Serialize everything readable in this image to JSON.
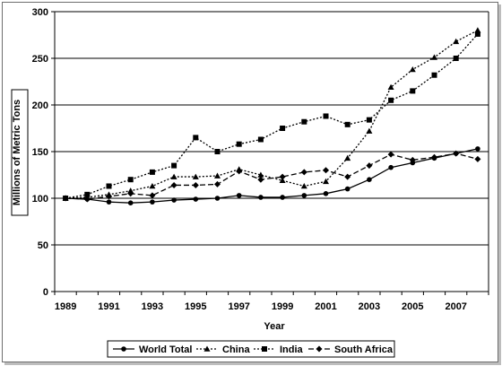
{
  "chart_data": {
    "type": "line",
    "title": "",
    "xlabel": "Year",
    "ylabel": "Millions of Metric Tons",
    "xlim": [
      1989,
      2008
    ],
    "ylim": [
      0,
      300
    ],
    "y_ticks": [
      0,
      50,
      100,
      150,
      200,
      250,
      300
    ],
    "x_ticks": [
      1989,
      1991,
      1993,
      1995,
      1997,
      1999,
      2001,
      2003,
      2005,
      2007
    ],
    "grid": "horizontal",
    "legend": "bottom",
    "x": [
      1989,
      1990,
      1991,
      1992,
      1993,
      1994,
      1995,
      1996,
      1997,
      1998,
      1999,
      2000,
      2001,
      2002,
      2003,
      2004,
      2005,
      2006,
      2007,
      2008
    ],
    "series": [
      {
        "name": "World Total",
        "marker": "circle",
        "dash": "solid",
        "values": [
          100,
          99,
          96,
          95,
          96,
          98,
          99,
          100,
          103,
          101,
          101,
          103,
          105,
          110,
          120,
          133,
          138,
          143,
          148,
          153
        ]
      },
      {
        "name": "China",
        "marker": "triangle",
        "dash": "dotted",
        "values": [
          100,
          101,
          104,
          108,
          113,
          123,
          123,
          124,
          131,
          125,
          119,
          113,
          118,
          143,
          172,
          219,
          238,
          251,
          268,
          280
        ]
      },
      {
        "name": "India",
        "marker": "square",
        "dash": "dotted",
        "values": [
          100,
          104,
          113,
          120,
          128,
          135,
          165,
          150,
          158,
          163,
          175,
          182,
          188,
          179,
          184,
          205,
          215,
          232,
          250,
          276
        ]
      },
      {
        "name": "South Africa",
        "marker": "diamond",
        "dash": "dashed",
        "values": [
          100,
          99,
          102,
          105,
          103,
          114,
          114,
          115,
          129,
          120,
          123,
          128,
          130,
          123,
          135,
          147,
          141,
          144,
          148,
          142
        ]
      }
    ]
  }
}
